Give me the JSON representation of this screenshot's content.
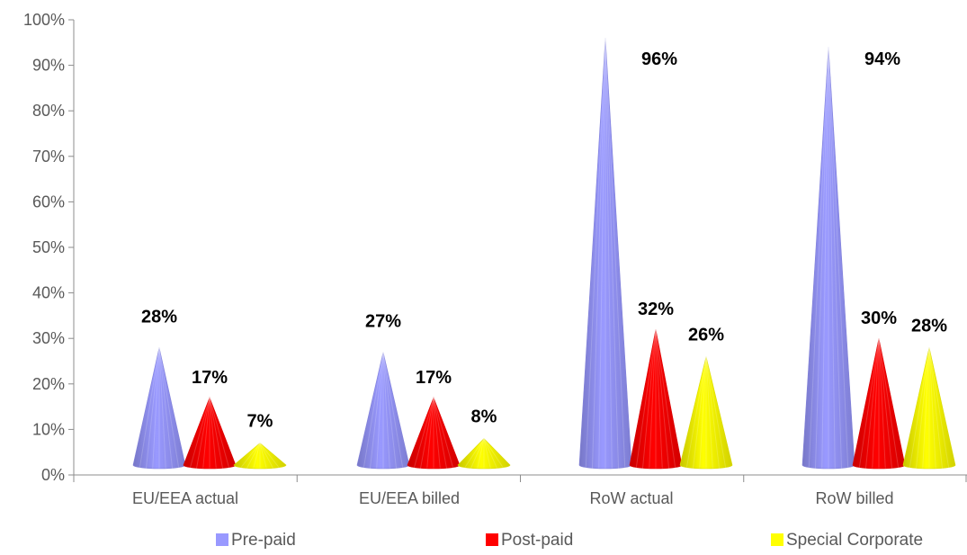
{
  "chart_data": {
    "type": "bar",
    "categories": [
      "EU/EEA actual",
      "EU/EEA billed",
      "RoW actual",
      "RoW billed"
    ],
    "series": [
      {
        "name": "Pre-paid",
        "values": [
          28,
          27,
          96,
          94
        ],
        "labels": [
          "28%",
          "27%",
          "96%",
          "94%"
        ],
        "color": "#9999ff"
      },
      {
        "name": "Post-paid",
        "values": [
          17,
          17,
          32,
          30
        ],
        "labels": [
          "17%",
          "17%",
          "32%",
          "30%"
        ],
        "color": "#ff0000"
      },
      {
        "name": "Special Corporate",
        "values": [
          7,
          8,
          26,
          28
        ],
        "labels": [
          "7%",
          "8%",
          "26%",
          "28%"
        ],
        "color": "#ffff00"
      }
    ],
    "yticks": [
      "0%",
      "10%",
      "20%",
      "30%",
      "40%",
      "50%",
      "60%",
      "70%",
      "80%",
      "90%",
      "100%"
    ],
    "ylim": [
      0,
      100
    ],
    "legend_position": "bottom",
    "grid": false
  }
}
